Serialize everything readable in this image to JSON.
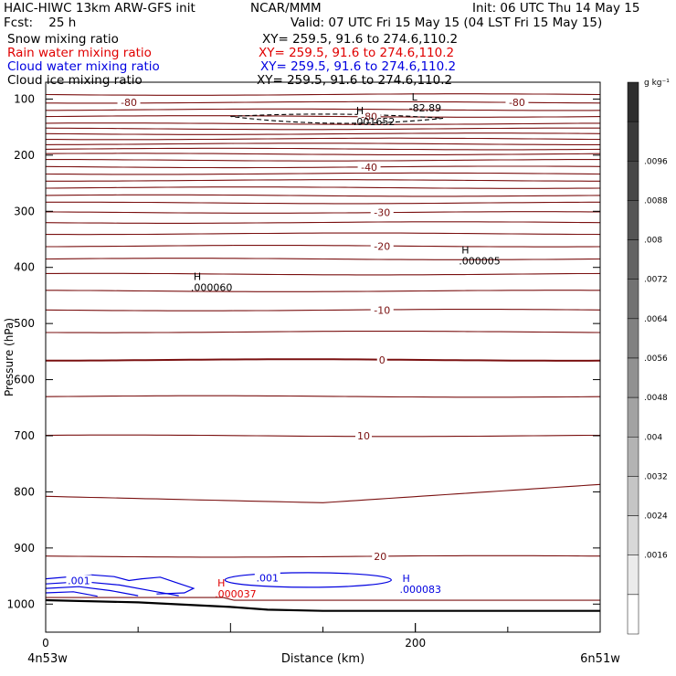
{
  "header": {
    "left_line1": "HAIC-HIWC 13km ARW-GFS init",
    "center_line1": "NCAR/MMM",
    "right_line1": "Init: 06 UTC Thu 14 May 15",
    "left_line2": "Fcst:    25 h",
    "right_line2": "Valid: 07 UTC Fri 15 May 15 (04 LST Fri 15 May 15)",
    "fields": [
      {
        "name": "Snow mixing ratio",
        "xy": "XY= 259.5, 91.6 to 274.6,110.2",
        "color": "#000000"
      },
      {
        "name": "Rain water mixing ratio",
        "xy": "XY= 259.5, 91.6 to 274.6,110.2",
        "color": "#e00000"
      },
      {
        "name": "Cloud water mixing ratio",
        "xy": "XY= 259.5, 91.6 to 274.6,110.2",
        "color": "#0000e0"
      },
      {
        "name": "Cloud ice mixing ratio",
        "xy": "XY= 259.5, 91.6 to 274.6,110.2",
        "color": "#000000"
      }
    ]
  },
  "chart_data": {
    "type": "contour",
    "xlabel": "Distance (km)",
    "ylabel": "Pressure (hPa)",
    "xlim": [
      0,
      300
    ],
    "ylim": [
      1050,
      70
    ],
    "x_ticks": [
      0,
      200
    ],
    "y_ticks": [
      100,
      200,
      300,
      400,
      500,
      600,
      700,
      800,
      900,
      1000
    ],
    "x_end_labels": {
      "left": "4n53w",
      "right": "6n51w"
    },
    "colorbar": {
      "unit": "g kg⁻¹",
      "labels": [
        ".0096",
        ".0088",
        ".008",
        ".0072",
        ".0064",
        ".0056",
        ".0048",
        ".004",
        ".0032",
        ".0024",
        ".0016"
      ],
      "colors": [
        "#2e2e2e",
        "#3a3a3a",
        "#474747",
        "#555555",
        "#636363",
        "#727272",
        "#818181",
        "#919191",
        "#a2a2a2",
        "#b3b3b3",
        "#c5c5c5",
        "#d8d8d8",
        "#ebebeb",
        "#ffffff"
      ]
    },
    "temperature_contours": {
      "color": "#7a1010",
      "pressures": [
        92,
        106,
        119,
        131,
        144,
        153,
        162,
        171,
        180,
        189,
        198,
        209,
        221,
        233,
        245,
        258,
        272,
        285,
        302,
        320,
        340,
        362,
        385,
        412,
        442,
        476,
        515,
        565,
        630,
        700,
        808,
        915,
        985
      ],
      "labels": [
        {
          "text": "-80",
          "x": 45,
          "p": 106
        },
        {
          "text": "-80",
          "x": 255,
          "p": 106
        },
        {
          "text": "-80",
          "x": 175,
          "p": 131
        },
        {
          "text": "-40",
          "x": 175,
          "p": 221
        },
        {
          "text": "-30",
          "x": 182,
          "p": 302
        },
        {
          "text": "-20",
          "x": 182,
          "p": 362
        },
        {
          "text": "-10",
          "x": 182,
          "p": 476
        },
        {
          "text": "0",
          "x": 182,
          "p": 565
        },
        {
          "text": "10",
          "x": 172,
          "p": 700
        },
        {
          "text": "20",
          "x": 181,
          "p": 915
        }
      ]
    },
    "ice_contour": {
      "style": "dashed",
      "label": ".001652",
      "x_range": [
        100,
        215
      ],
      "p": 131
    },
    "cloud_water_contours": [
      {
        "label": ".001",
        "x": 18,
        "p": 958
      },
      {
        "label": ".001",
        "x": 120,
        "p": 953
      }
    ],
    "annotations": [
      {
        "text": "L",
        "value": "-82.89",
        "x": 198,
        "p": 112,
        "color": "#000000"
      },
      {
        "text": "H",
        "value": ".001652",
        "x": 168,
        "p": 137,
        "color": "#000000"
      },
      {
        "text": "H",
        "value": ".000005",
        "x": 225,
        "p": 385,
        "color": "#000000"
      },
      {
        "text": "H",
        "value": ".000060",
        "x": 80,
        "p": 432,
        "color": "#000000"
      },
      {
        "text": "H",
        "value": ".000037",
        "x": 93,
        "p": 978,
        "color": "#e00000"
      },
      {
        "text": "H",
        "value": ".000083",
        "x": 193,
        "p": 970,
        "color": "#0000e0"
      }
    ],
    "terrain": {
      "x": [
        0,
        50,
        100,
        120,
        150,
        300
      ],
      "p": [
        993,
        997,
        1005,
        1010,
        1012,
        1012
      ]
    }
  }
}
